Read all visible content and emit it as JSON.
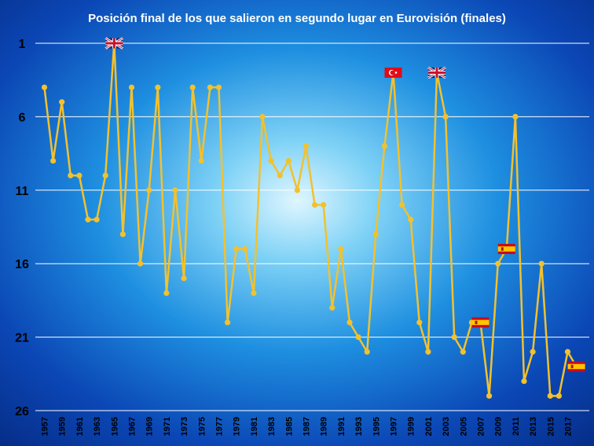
{
  "chart_data": {
    "type": "line",
    "title": "Posición final de los que salieron en segundo lugar en Eurovisión (finales)",
    "xlabel": "",
    "ylabel": "",
    "y_inverted": true,
    "ylim": [
      1,
      26
    ],
    "yticks": [
      1,
      6,
      11,
      16,
      21,
      26
    ],
    "xtick_labels": [
      "1957",
      "1959",
      "1961",
      "1963",
      "1965",
      "1967",
      "1969",
      "1971",
      "1973",
      "1975",
      "1977",
      "1979",
      "1981",
      "1983",
      "1985",
      "1987",
      "1989",
      "1991",
      "1993",
      "1995",
      "1997",
      "1999",
      "2001",
      "2003",
      "2005",
      "2007",
      "2009",
      "2011",
      "2013",
      "2015",
      "2017"
    ],
    "grid": true,
    "series": [
      {
        "color": "#f2c12e",
        "x": [
          1957,
          1958,
          1959,
          1960,
          1961,
          1962,
          1963,
          1964,
          1965,
          1966,
          1967,
          1968,
          1969,
          1970,
          1971,
          1972,
          1973,
          1974,
          1975,
          1976,
          1977,
          1978,
          1979,
          1980,
          1981,
          1982,
          1983,
          1984,
          1985,
          1986,
          1987,
          1988,
          1989,
          1990,
          1991,
          1992,
          1993,
          1994,
          1995,
          1996,
          1997,
          1998,
          1999,
          2000,
          2001,
          2002,
          2003,
          2004,
          2005,
          2006,
          2007,
          2008,
          2009,
          2010,
          2011,
          2012,
          2013,
          2014,
          2015,
          2016,
          2017,
          2018
        ],
        "values": [
          4,
          9,
          5,
          10,
          10,
          13,
          13,
          10,
          1,
          14,
          4,
          16,
          11,
          4,
          18,
          11,
          17,
          4,
          9,
          4,
          4,
          20,
          15,
          15,
          18,
          6,
          9,
          10,
          9,
          11,
          8,
          12,
          12,
          19,
          15,
          20,
          21,
          22,
          14,
          8,
          3,
          12,
          13,
          20,
          22,
          3,
          6,
          21,
          22,
          20,
          20,
          25,
          16,
          15,
          6,
          24,
          22,
          16,
          25,
          25,
          22,
          23
        ]
      }
    ],
    "flag_annotations": [
      {
        "year": 1965,
        "position": 1,
        "flag": "united-kingdom-flag"
      },
      {
        "year": 1997,
        "position": 3,
        "flag": "turkey-flag"
      },
      {
        "year": 2002,
        "position": 3,
        "flag": "united-kingdom-flag"
      },
      {
        "year": 2007,
        "position": 20,
        "flag": "spain-flag"
      },
      {
        "year": 2010,
        "position": 15,
        "flag": "spain-flag"
      },
      {
        "year": 2018,
        "position": 23,
        "flag": "spain-flag"
      }
    ]
  }
}
